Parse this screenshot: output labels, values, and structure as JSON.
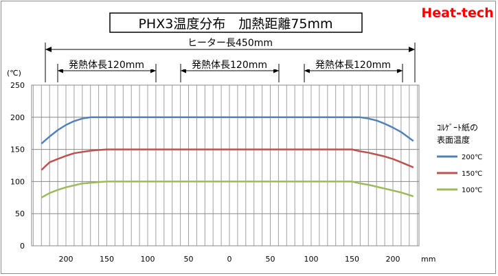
{
  "brand": "Heat-tech",
  "chart_data": {
    "type": "line",
    "title": "PHX3温度分布　加熱距離75mm",
    "ylabel": "(℃)",
    "xunit": "mm",
    "ylim": [
      0,
      250
    ],
    "yticks": [
      0,
      50,
      100,
      150,
      200,
      250
    ],
    "xticks": [
      "200",
      "150",
      "100",
      "50",
      "0",
      "50",
      "100",
      "150",
      "200"
    ],
    "grid": true,
    "legend_title": "コルゲート紙の表面温度",
    "legend_title_lines": [
      "ｺﾙｹﾞｰﾄ紙の",
      "表面温度"
    ],
    "legend_position": "right",
    "dimensions": {
      "heater": "ヒーター長450mm",
      "heating_zones": [
        "発熱体長120mm",
        "発熱体長120mm",
        "発熱体長120mm"
      ]
    },
    "x": [
      -230,
      -220,
      -210,
      -200,
      -190,
      -180,
      -170,
      -160,
      -150,
      -100,
      -50,
      0,
      50,
      100,
      150,
      160,
      170,
      180,
      190,
      200,
      210,
      225
    ],
    "series": [
      {
        "name": "200℃",
        "color": "#4f81bd",
        "values": [
          159,
          170,
          180,
          188,
          194,
          198,
          200,
          200,
          200,
          200,
          200,
          200,
          200,
          200,
          200,
          200,
          198,
          195,
          190,
          184,
          177,
          163
        ]
      },
      {
        "name": "150℃",
        "color": "#c0504d",
        "values": [
          118,
          130,
          135,
          140,
          144,
          146,
          148,
          149,
          150,
          150,
          150,
          150,
          150,
          150,
          150,
          147,
          145,
          142,
          139,
          135,
          130,
          122
        ]
      },
      {
        "name": "100℃",
        "color": "#9bbb59",
        "values": [
          75,
          82,
          87,
          91,
          94,
          97,
          98,
          99,
          100,
          100,
          100,
          100,
          100,
          100,
          100,
          97,
          95,
          92,
          89,
          86,
          83,
          77
        ]
      }
    ]
  }
}
